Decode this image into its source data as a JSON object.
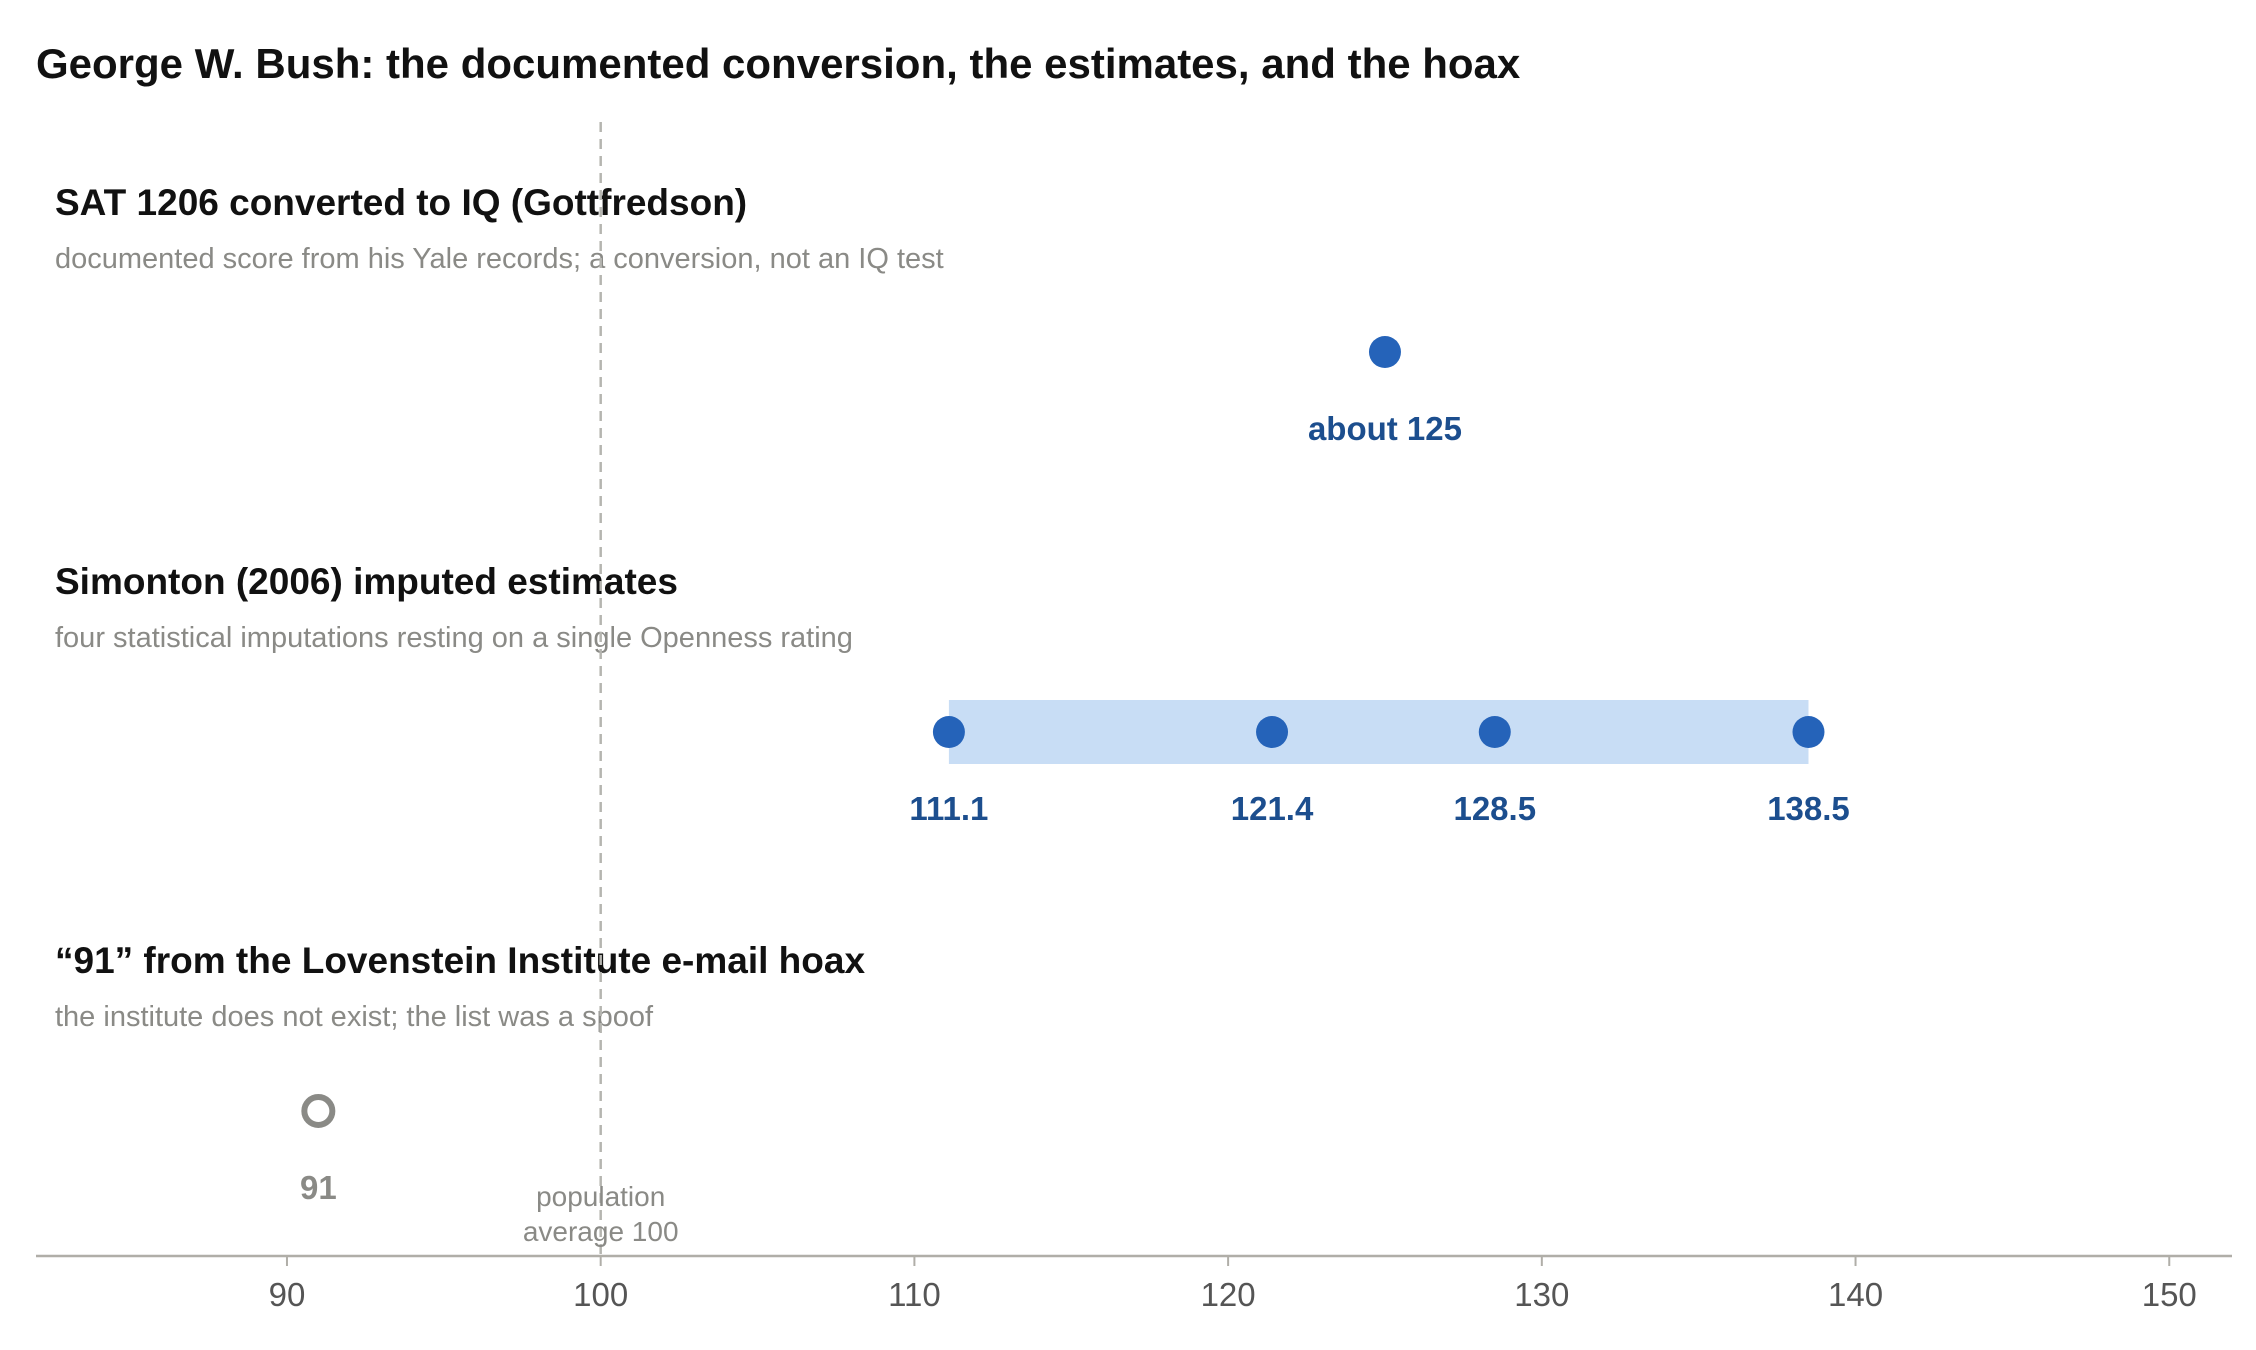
{
  "chart_data": {
    "type": "scatter",
    "title": "George W. Bush: the documented conversion, the estimates, and the hoax",
    "xlim": [
      82,
      152
    ],
    "x_ticks": [
      90,
      100,
      110,
      120,
      130,
      140,
      150
    ],
    "grid": false,
    "reference_line": {
      "x": 100,
      "label_line1": "population",
      "label_line2": "average 100"
    },
    "rows": [
      {
        "title": "SAT 1206 converted to IQ (Gottfredson)",
        "subtitle": "documented score from his Yale records; a conversion, not an IQ test",
        "points": [
          {
            "x": 125,
            "label": "about 125"
          }
        ],
        "marker": "filled",
        "color": "#2563b9",
        "label_color": "#1c4e8e"
      },
      {
        "title": "Simonton (2006) imputed estimates",
        "subtitle": "four statistical imputations resting on a single Openness rating",
        "points": [
          {
            "x": 111.1,
            "label": "111.1"
          },
          {
            "x": 121.4,
            "label": "121.4"
          },
          {
            "x": 128.5,
            "label": "128.5"
          },
          {
            "x": 138.5,
            "label": "138.5"
          }
        ],
        "range": [
          111.1,
          138.5
        ],
        "range_color": "#c8ddf5",
        "marker": "filled",
        "color": "#2563b9",
        "label_color": "#1c4e8e"
      },
      {
        "title": "“91” from the Lovenstein Institute e-mail hoax",
        "subtitle": "the institute does not exist; the list was a spoof",
        "points": [
          {
            "x": 91,
            "label": "91"
          }
        ],
        "marker": "hollow",
        "color": "#8a8a86",
        "label_color": "#8a8a86"
      }
    ]
  }
}
